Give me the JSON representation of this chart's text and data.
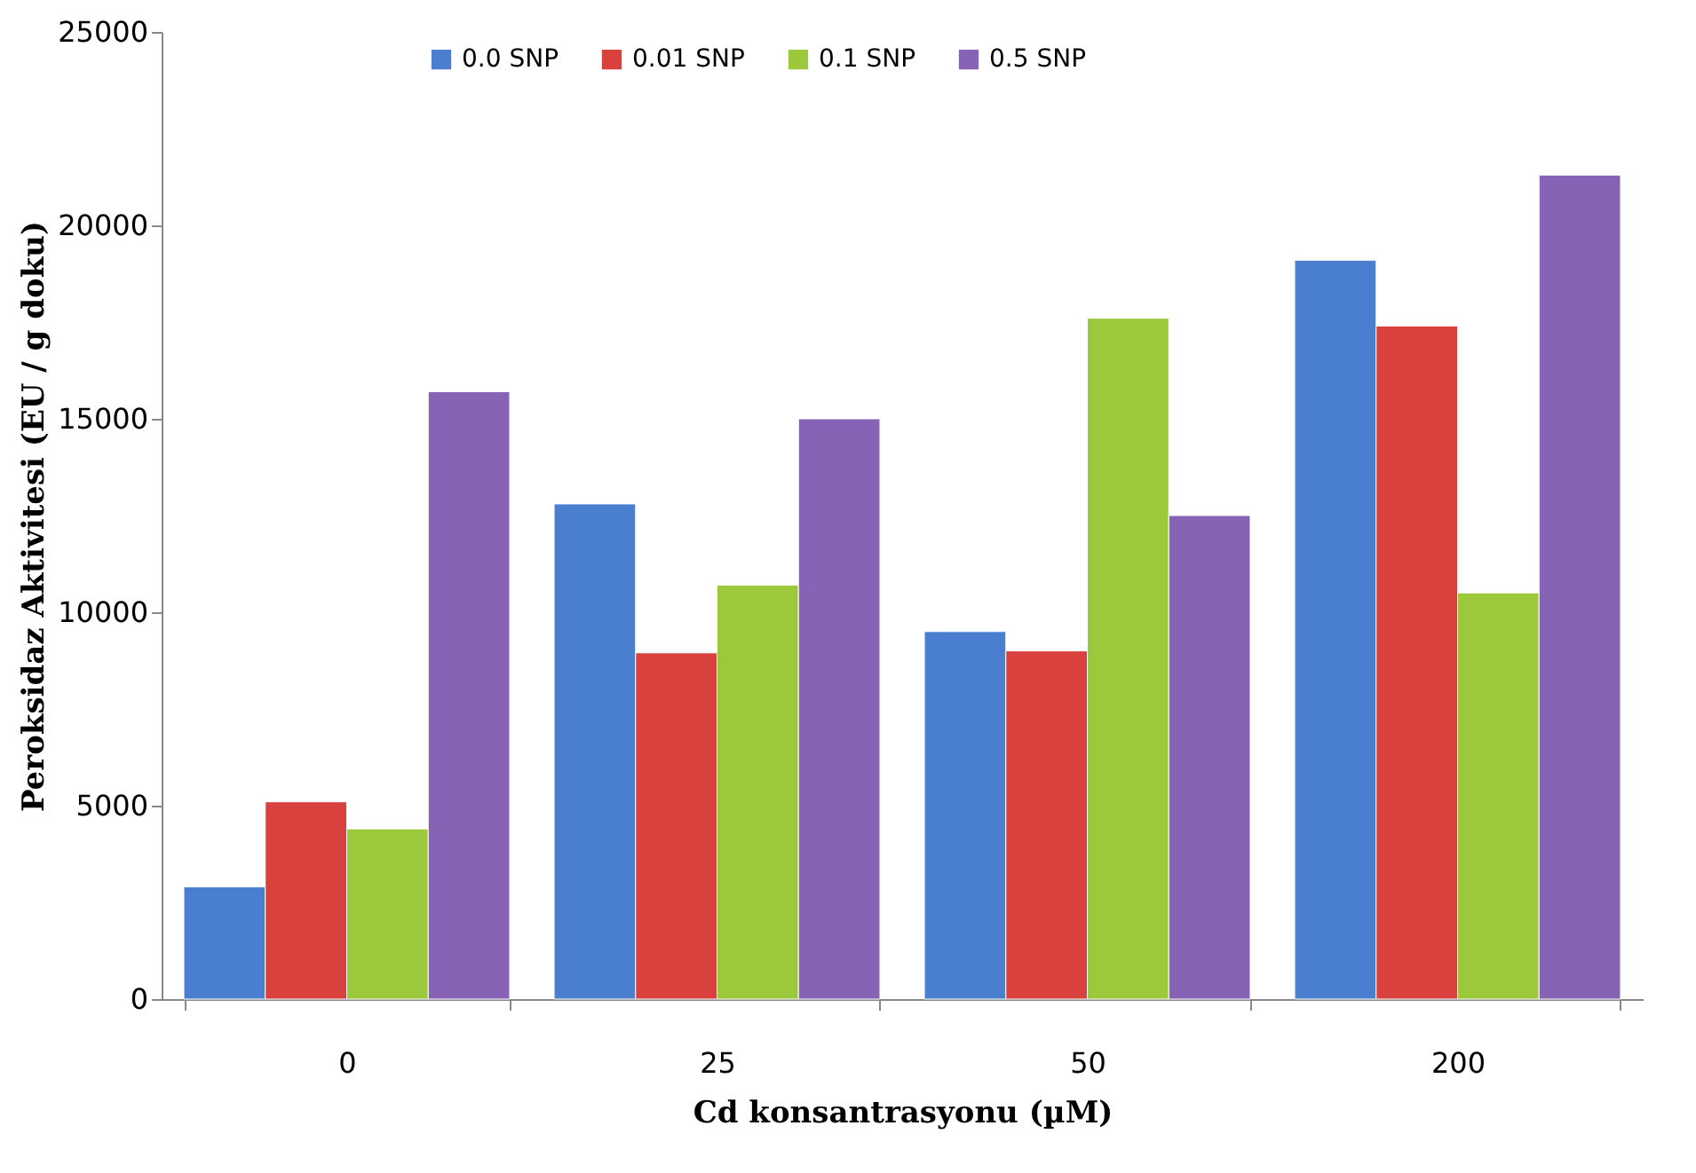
{
  "chart_data": {
    "type": "bar",
    "xlabel": "Cd konsantrasyonu  (µM)",
    "ylabel": "Peroksidaz Aktivitesi (EU / g doku)",
    "categories": [
      "0",
      "25",
      "50",
      "200"
    ],
    "series": [
      {
        "name": "0.0 SNP",
        "color": "#4a7fd0",
        "values": [
          2900,
          12800,
          9500,
          19100
        ]
      },
      {
        "name": "0.01 SNP",
        "color": "#d9413f",
        "values": [
          5100,
          8950,
          9000,
          17400
        ]
      },
      {
        "name": "0.1 SNP",
        "color": "#9bc93b",
        "values": [
          4400,
          10700,
          17600,
          10500
        ]
      },
      {
        "name": "0.5 SNP",
        "color": "#8663b5",
        "values": [
          15700,
          15000,
          12500,
          21300
        ]
      }
    ],
    "ylim": [
      0,
      25000
    ],
    "yticks": [
      0,
      5000,
      10000,
      15000,
      20000,
      25000
    ],
    "grid": false,
    "legend": "top"
  }
}
